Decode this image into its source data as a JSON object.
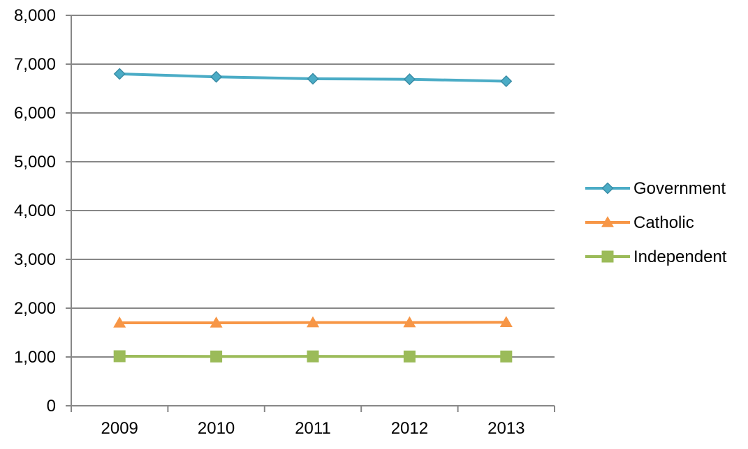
{
  "chart_data": {
    "type": "line",
    "title": "",
    "xlabel": "",
    "ylabel": "",
    "categories": [
      "2009",
      "2010",
      "2011",
      "2012",
      "2013"
    ],
    "ylim": [
      0,
      8000
    ],
    "yticks": [
      0,
      1000,
      2000,
      3000,
      4000,
      5000,
      6000,
      7000,
      8000
    ],
    "ytick_labels": [
      "0",
      "1,000",
      "2,000",
      "3,000",
      "4,000",
      "5,000",
      "6,000",
      "7,000",
      "8,000"
    ],
    "grid": true,
    "legend_position": "right",
    "series": [
      {
        "name": "Government",
        "values": [
          6800,
          6740,
          6700,
          6690,
          6650
        ],
        "color": "#4BACC6",
        "marker": "diamond"
      },
      {
        "name": "Catholic",
        "values": [
          1700,
          1700,
          1705,
          1705,
          1710
        ],
        "color": "#F79646",
        "marker": "triangle"
      },
      {
        "name": "Independent",
        "values": [
          1015,
          1010,
          1012,
          1010,
          1010
        ],
        "color": "#9BBB59",
        "marker": "square"
      }
    ]
  }
}
